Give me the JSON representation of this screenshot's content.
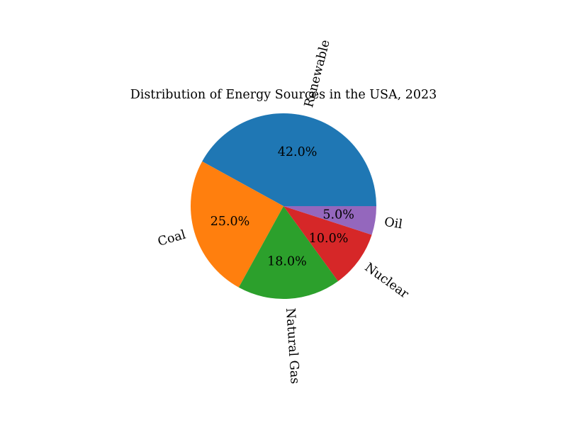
{
  "chart_data": {
    "type": "pie",
    "title": "Distribution of Energy Sources in the USA, 2023",
    "categories": [
      "Renewable",
      "Coal",
      "Natural Gas",
      "Nuclear",
      "Oil"
    ],
    "values": [
      42.0,
      25.0,
      18.0,
      10.0,
      5.0
    ],
    "value_labels": [
      "42.0%",
      "25.0%",
      "18.0%",
      "10.0%",
      "5.0%"
    ],
    "colors": [
      "#1f77b4",
      "#ff7f0e",
      "#2ca02c",
      "#d62728",
      "#9467bd"
    ],
    "start_angle_deg": 0,
    "direction": "counterclockwise",
    "legend": "none",
    "grid": false
  }
}
